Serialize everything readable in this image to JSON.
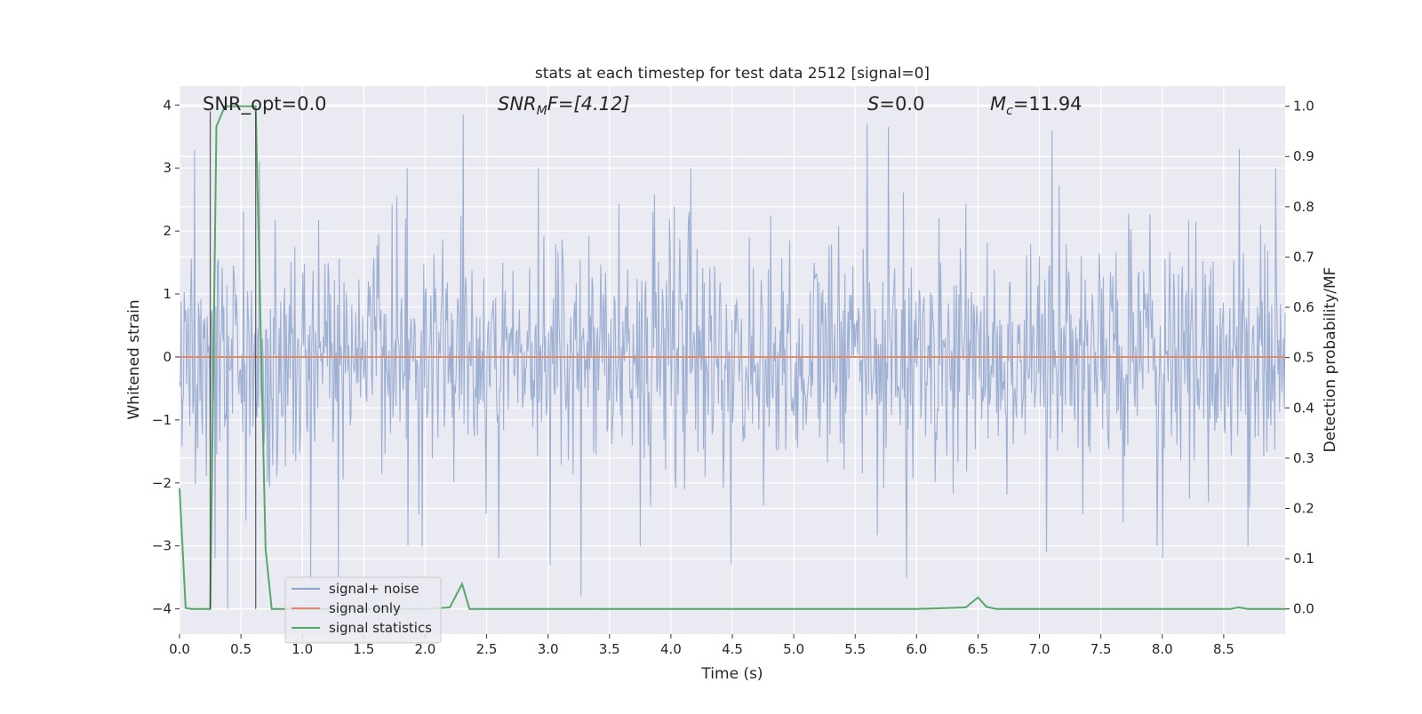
{
  "chart_data": {
    "type": "line",
    "title": "stats at each timestep for test data 2512 [signal=0]",
    "xlabel": "Time (s)",
    "ylabel_left": "Whitened strain",
    "ylabel_right": "Detection probability/MF",
    "xlim": [
      0.0,
      9.0
    ],
    "ylim_left": [
      -4.4,
      4.3
    ],
    "ylim_right": [
      -0.05,
      1.04
    ],
    "grid": true,
    "legend_position": "bottom-left",
    "x_ticks": [
      0.0,
      0.5,
      1.0,
      1.5,
      2.0,
      2.5,
      3.0,
      3.5,
      4.0,
      4.5,
      5.0,
      5.5,
      6.0,
      6.5,
      7.0,
      7.5,
      8.0,
      8.5
    ],
    "x_tick_labels": [
      "0.0",
      "0.5",
      "1.0",
      "1.5",
      "2.0",
      "2.5",
      "3.0",
      "3.5",
      "4.0",
      "4.5",
      "5.0",
      "5.5",
      "6.0",
      "6.5",
      "7.0",
      "7.5",
      "8.0",
      "8.5"
    ],
    "y_left_ticks": [
      4,
      3,
      2,
      1,
      0,
      -1,
      -2,
      -3,
      -4
    ],
    "y_left_tick_labels": [
      "4",
      "3",
      "2",
      "1",
      "0",
      "−1",
      "−2",
      "−3",
      "−4"
    ],
    "y_right_ticks": [
      1.0,
      0.9,
      0.8,
      0.7,
      0.6,
      0.5,
      0.4,
      0.3,
      0.2,
      0.1,
      0.0
    ],
    "y_right_tick_labels": [
      "1.0",
      "0.9",
      "0.8",
      "0.7",
      "0.6",
      "0.5",
      "0.4",
      "0.3",
      "0.2",
      "0.1",
      "0.0"
    ],
    "annotations": {
      "snr_opt": "SNR_opt=0.0",
      "snr_mf_name": "SNR",
      "snr_mf_sub": "M",
      "snr_mf_rest": "F=[4.12]",
      "s_name": "S",
      "s_rest": "=0.0",
      "mc_name": "M",
      "mc_sub": "c",
      "mc_rest": "=11.94"
    },
    "vertical_markers_s": [
      0.25,
      0.62
    ],
    "series": [
      {
        "name": "signal+ noise",
        "axis": "left",
        "color": "#8fa4cc",
        "kind": "noise",
        "n_samples": 1400,
        "std": 0.95,
        "peaks": [
          {
            "t": 0.12,
            "v": 3.28
          },
          {
            "t": 0.29,
            "v": -3.2
          },
          {
            "t": 0.39,
            "v": -4.0
          },
          {
            "t": 0.54,
            "v": -2.6
          },
          {
            "t": 0.65,
            "v": 3.1
          },
          {
            "t": 1.07,
            "v": -3.55
          },
          {
            "t": 1.29,
            "v": -3.5
          },
          {
            "t": 2.31,
            "v": 3.85
          },
          {
            "t": 2.6,
            "v": -3.2
          },
          {
            "t": 3.27,
            "v": -3.8
          },
          {
            "t": 3.02,
            "v": -3.3
          },
          {
            "t": 4.49,
            "v": -3.3
          },
          {
            "t": 5.6,
            "v": 3.7
          },
          {
            "t": 5.77,
            "v": 3.65
          },
          {
            "t": 5.92,
            "v": -3.5
          },
          {
            "t": 7.06,
            "v": -3.1
          },
          {
            "t": 7.1,
            "v": 3.6
          },
          {
            "t": 8.0,
            "v": -3.2
          },
          {
            "t": 8.63,
            "v": 3.3
          },
          {
            "t": 8.7,
            "v": -3.0
          }
        ]
      },
      {
        "name": "signal only",
        "axis": "left",
        "color": "#e08a6a",
        "x": [
          0.0,
          9.0
        ],
        "y": [
          0.0,
          0.0
        ]
      },
      {
        "name": "signal statistics",
        "axis": "right",
        "color": "#55a868",
        "x": [
          0.0,
          0.05,
          0.1,
          0.15,
          0.2,
          0.25,
          0.3,
          0.37,
          0.45,
          0.55,
          0.62,
          0.7,
          0.75,
          0.8,
          1.0,
          1.5,
          2.0,
          2.2,
          2.3,
          2.36,
          2.45,
          3.0,
          4.0,
          5.0,
          6.0,
          6.4,
          6.5,
          6.57,
          6.65,
          7.0,
          8.0,
          8.55,
          8.62,
          8.7,
          9.0
        ],
        "y": [
          0.24,
          0.002,
          0.0,
          0.0,
          0.0,
          0.0,
          0.96,
          1.0,
          1.0,
          1.0,
          1.0,
          0.12,
          0.0,
          0.0,
          0.0,
          0.0,
          0.0,
          0.003,
          0.05,
          0.0,
          0.0,
          0.0,
          0.0,
          0.0,
          0.0,
          0.003,
          0.023,
          0.004,
          0.0,
          0.0,
          0.0,
          0.0,
          0.003,
          0.0,
          0.0
        ]
      }
    ]
  }
}
